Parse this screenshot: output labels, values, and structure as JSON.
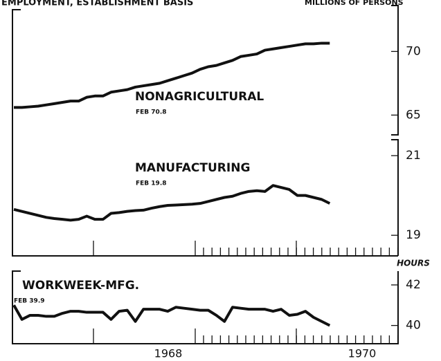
{
  "header": {
    "title": "EMPLOYMENT, ESTABLISHMENT BASIS",
    "units": "MILLIONS OF PERSONS"
  },
  "x_axis_labels": [
    "1968",
    "1970"
  ],
  "chart_data": [
    {
      "type": "line",
      "label": "NONAGRICULTURAL",
      "note": "FEB 70.8",
      "color": "#111111",
      "ylim": [
        63.5,
        73.5
      ],
      "yticks": [
        65,
        70
      ],
      "values": [
        65.6,
        65.6,
        65.65,
        65.7,
        65.8,
        65.9,
        66.0,
        66.1,
        66.1,
        66.4,
        66.5,
        66.5,
        66.8,
        66.9,
        67.0,
        67.2,
        67.3,
        67.4,
        67.5,
        67.7,
        67.9,
        68.1,
        68.3,
        68.6,
        68.8,
        68.9,
        69.1,
        69.3,
        69.6,
        69.7,
        69.8,
        70.1,
        70.2,
        70.3,
        70.4,
        70.5,
        70.6,
        70.6,
        70.65,
        70.65
      ]
    },
    {
      "type": "line",
      "label": "MANUFACTURING",
      "note": "FEB 19.8",
      "color": "#111111",
      "ylim": [
        18.5,
        21.4
      ],
      "yticks": [
        19,
        21
      ],
      "values": [
        19.65,
        19.6,
        19.55,
        19.5,
        19.45,
        19.42,
        19.4,
        19.38,
        19.4,
        19.48,
        19.4,
        19.4,
        19.55,
        19.57,
        19.6,
        19.62,
        19.63,
        19.68,
        19.72,
        19.75,
        19.76,
        19.77,
        19.78,
        19.8,
        19.85,
        19.9,
        19.95,
        19.98,
        20.05,
        20.1,
        20.12,
        20.1,
        20.25,
        20.2,
        20.15,
        20.0,
        20.0,
        19.95,
        19.9,
        19.8
      ]
    },
    {
      "type": "line",
      "label": "WORKWEEK-MFG.",
      "note": "FEB 39.9",
      "axis_label": "HOURS",
      "color": "#111111",
      "ylim": [
        39.1,
        42.75
      ],
      "yticks": [
        40,
        42
      ],
      "values": [
        41.0,
        40.3,
        40.5,
        40.5,
        40.45,
        40.45,
        40.6,
        40.7,
        40.7,
        40.65,
        40.65,
        40.65,
        40.3,
        40.7,
        40.75,
        40.2,
        40.8,
        40.8,
        40.8,
        40.7,
        40.9,
        40.85,
        40.8,
        40.75,
        40.75,
        40.5,
        40.2,
        40.9,
        40.85,
        40.8,
        40.8,
        40.8,
        40.7,
        40.8,
        40.5,
        40.55,
        40.7,
        40.4,
        40.2,
        40.0
      ]
    }
  ]
}
